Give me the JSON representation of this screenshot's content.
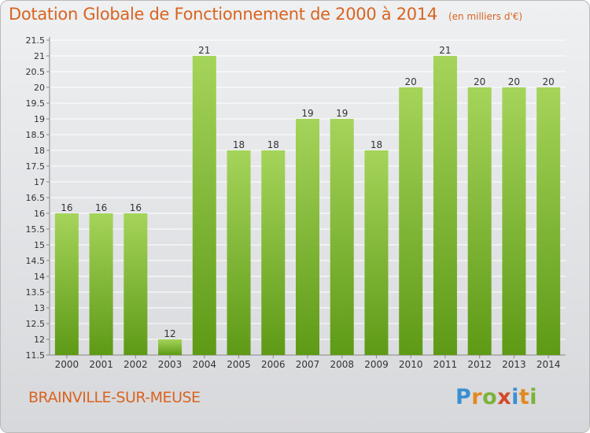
{
  "title": "Dotation Globale de Fonctionnement de 2000 à 2014",
  "subtitle": "(en milliers d'€)",
  "location": "BRAINVILLE-SUR-MEUSE",
  "brand": {
    "letters": [
      "P",
      "r",
      "o",
      "x",
      "i",
      "t",
      "i"
    ],
    "colors": [
      "#3a8fd0",
      "#e2891f",
      "#7ab33a",
      "#d34a2a",
      "#3a8fd0",
      "#e2891f",
      "#7ab33a"
    ]
  },
  "colors": {
    "title": "#d9641f",
    "bar_top": "#a5d45a",
    "bar_bottom": "#5e9a16",
    "grid": "#ffffff",
    "axis": "#888888",
    "text": "#333333"
  },
  "chart_data": {
    "type": "bar",
    "title": "Dotation Globale de Fonctionnement de 2000 à 2014",
    "subtitle": "(en milliers d'€)",
    "categories": [
      "2000",
      "2001",
      "2002",
      "2003",
      "2004",
      "2005",
      "2006",
      "2007",
      "2008",
      "2009",
      "2010",
      "2011",
      "2012",
      "2013",
      "2014"
    ],
    "values": [
      16,
      16,
      16,
      12,
      21,
      18,
      18,
      19,
      19,
      18,
      20,
      21,
      20,
      20,
      20
    ],
    "ylim": [
      11.5,
      21.5
    ],
    "yticks": [
      "11.5",
      "12",
      "12.5",
      "13",
      "13.5",
      "14",
      "14.5",
      "15",
      "15.5",
      "16",
      "16.5",
      "17",
      "17.5",
      "18",
      "18.5",
      "19",
      "19.5",
      "20",
      "20.5",
      "21",
      "21.5"
    ],
    "grid": true,
    "data_labels": true
  }
}
